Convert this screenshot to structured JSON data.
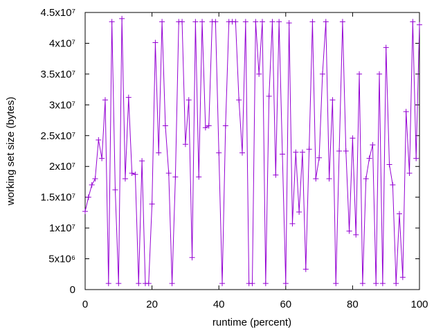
{
  "chart_data": {
    "type": "line",
    "xlabel": "runtime (percent)",
    "ylabel": "working set size (bytes)",
    "x": [
      0,
      1,
      2,
      3,
      4,
      5,
      6,
      7,
      8,
      9,
      10,
      11,
      12,
      13,
      14,
      15,
      16,
      17,
      18,
      19,
      20,
      21,
      22,
      23,
      24,
      25,
      26,
      27,
      28,
      29,
      30,
      31,
      32,
      33,
      34,
      35,
      36,
      37,
      38,
      39,
      40,
      41,
      42,
      43,
      44,
      45,
      46,
      47,
      48,
      49,
      50,
      51,
      52,
      53,
      54,
      55,
      56,
      57,
      58,
      59,
      60,
      61,
      62,
      63,
      64,
      65,
      66,
      67,
      68,
      69,
      70,
      71,
      72,
      73,
      74,
      75,
      76,
      77,
      78,
      79,
      80,
      81,
      82,
      83,
      84,
      85,
      86,
      87,
      88,
      89,
      90,
      91,
      92,
      93,
      94,
      95,
      96,
      97,
      98,
      99,
      100
    ],
    "series": [
      {
        "color": "#9400d3",
        "values": [
          12700000.0,
          15000000.0,
          17000000.0,
          18000000.0,
          24300000.0,
          21300000.0,
          30800000.0,
          1000000.0,
          43500000.0,
          16200000.0,
          1000000.0,
          44000000.0,
          18000000.0,
          31200000.0,
          18900000.0,
          18700000.0,
          1000000.0,
          20900000.0,
          1000000.0,
          1000000.0,
          13900000.0,
          40100000.0,
          22200000.0,
          43500000.0,
          26600000.0,
          18900000.0,
          1000000.0,
          18300000.0,
          43500000.0,
          43500000.0,
          23600000.0,
          30800000.0,
          5200000.0,
          43500000.0,
          18300000.0,
          43500000.0,
          26300000.0,
          26600000.0,
          43500000.0,
          43500000.0,
          22200000.0,
          1000000.0,
          26600000.0,
          43500000.0,
          43500000.0,
          43500000.0,
          30800000.0,
          22200000.0,
          43500000.0,
          1000000.0,
          1000000.0,
          43500000.0,
          35000000.0,
          43500000.0,
          1000000.0,
          31400000.0,
          43500000.0,
          18600000.0,
          43500000.0,
          22000000.0,
          1000000.0,
          43300000.0,
          10700000.0,
          22300000.0,
          12600000.0,
          22300000.0,
          3300000.0,
          22800000.0,
          43500000.0,
          18000000.0,
          21400000.0,
          35000000.0,
          43500000.0,
          18000000.0,
          30800000.0,
          1000000.0,
          22500000.0,
          43500000.0,
          22500000.0,
          9500000.0,
          24600000.0,
          8900000.0,
          35000000.0,
          1000000.0,
          18000000.0,
          21300000.0,
          23500000.0,
          1000000.0,
          35000000.0,
          1000000.0,
          39300000.0,
          20300000.0,
          17000000.0,
          1000000.0,
          12300000.0,
          2000000.0,
          28900000.0,
          18900000.0,
          43500000.0,
          21300000.0,
          43000000.0
        ]
      }
    ],
    "xlim": [
      0,
      100
    ],
    "xticks": [
      0,
      20,
      40,
      60,
      80,
      100
    ],
    "ylim": [
      0,
      45000000
    ],
    "yticks": [
      0,
      {
        "value": 5000000,
        "label": "5x10⁶"
      },
      {
        "value": 10000000,
        "label": "1x10⁷"
      },
      {
        "value": 15000000,
        "label": "1.5x10⁷"
      },
      {
        "value": 20000000,
        "label": "2x10⁷"
      },
      {
        "value": 25000000,
        "label": "2.5x10⁷"
      },
      {
        "value": 30000000,
        "label": "3x10⁷"
      },
      {
        "value": 35000000,
        "label": "3.5x10⁷"
      },
      {
        "value": 40000000,
        "label": "4x10⁷"
      },
      {
        "value": 45000000,
        "label": "4.5x10⁷"
      }
    ]
  }
}
